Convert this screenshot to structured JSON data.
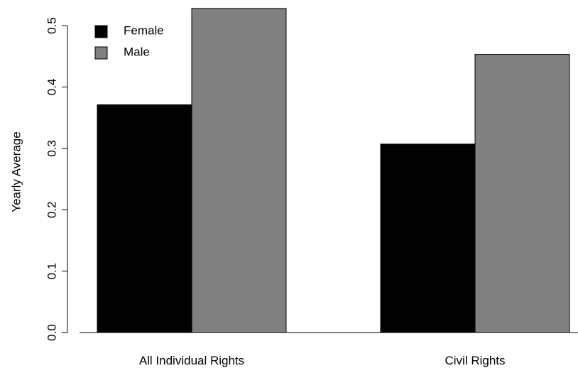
{
  "chart_data": {
    "type": "bar",
    "title": "",
    "xlabel": "",
    "ylabel": "Yearly Average",
    "categories": [
      "All Individual Rights",
      "Civil Rights"
    ],
    "series": [
      {
        "name": "Female",
        "values": [
          0.371,
          0.307
        ],
        "color": "#000000"
      },
      {
        "name": "Male",
        "values": [
          0.528,
          0.453
        ],
        "color": "#808080"
      }
    ],
    "ylim": [
      0,
      0.5
    ],
    "yticks": [
      "0.0",
      "0.1",
      "0.2",
      "0.3",
      "0.4",
      "0.5"
    ],
    "grid": false,
    "legend": "top-left"
  }
}
